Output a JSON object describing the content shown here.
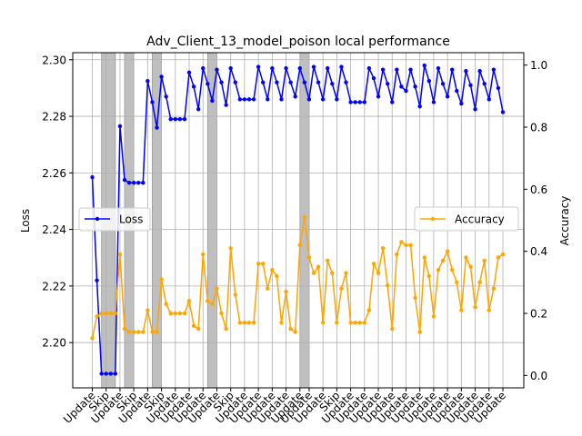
{
  "chart_data": {
    "type": "line",
    "title": "Adv_Client_13_model_poison local performance",
    "ylabel_left": "Loss",
    "ylabel_right": "Accuracy",
    "ylim_left": [
      2.184,
      2.3025
    ],
    "ylim_right": [
      -0.04,
      1.04
    ],
    "yticks_left": [
      "2.20",
      "2.22",
      "2.24",
      "2.26",
      "2.28",
      "2.30"
    ],
    "yticks_right": [
      "0.0",
      "0.2",
      "0.4",
      "0.6",
      "0.8",
      "1.0"
    ],
    "grid": true,
    "xtick_labels": [
      "Update",
      "Skip",
      "Update",
      "Skip",
      "Update",
      "Skip",
      "Update",
      "Update",
      "Update",
      "Update",
      "Skip",
      "Update",
      "Update",
      "Update",
      "Update",
      "Update",
      "Update",
      "Update",
      "Skip",
      "Update",
      "Update",
      "Update",
      "Update",
      "Update",
      "Update",
      "Update",
      "Update",
      "Update",
      "Update",
      "Update",
      "Update"
    ],
    "skip_regions": [
      [
        2,
        5
      ],
      [
        7,
        9
      ],
      [
        13,
        15
      ],
      [
        25,
        27
      ],
      [
        45,
        47
      ]
    ],
    "legend": {
      "loss_position": "center-left",
      "accuracy_position": "center-right"
    },
    "series": [
      {
        "name": "Loss",
        "color": "#0000ff",
        "axis": "left",
        "values": [
          2.2585,
          2.222,
          2.189,
          2.189,
          2.189,
          2.189,
          2.2765,
          2.2575,
          2.2565,
          2.2565,
          2.2565,
          2.2565,
          2.2925,
          2.285,
          2.276,
          2.294,
          2.287,
          2.279,
          2.279,
          2.279,
          2.279,
          2.2955,
          2.2905,
          2.2825,
          2.297,
          2.2915,
          2.2855,
          2.2965,
          2.292,
          2.284,
          2.297,
          2.292,
          2.286,
          2.286,
          2.286,
          2.286,
          2.2975,
          2.292,
          2.286,
          2.297,
          2.292,
          2.286,
          2.297,
          2.292,
          2.287,
          2.297,
          2.292,
          2.286,
          2.2975,
          2.292,
          2.286,
          2.297,
          2.2915,
          2.286,
          2.2975,
          2.292,
          2.285,
          2.285,
          2.285,
          2.285,
          2.297,
          2.2935,
          2.287,
          2.2965,
          2.2915,
          2.285,
          2.2965,
          2.2905,
          2.289,
          2.2965,
          2.2905,
          2.2835,
          2.298,
          2.2925,
          2.285,
          2.297,
          2.2915,
          2.287,
          2.2965,
          2.289,
          2.2845,
          2.296,
          2.291,
          2.2825,
          2.296,
          2.2915,
          2.286,
          2.2965,
          2.29,
          2.2815
        ]
      },
      {
        "name": "Accuracy",
        "color": "#ffa500",
        "axis": "right",
        "values": [
          0.12,
          0.19,
          0.2,
          0.2,
          0.2,
          0.2,
          0.39,
          0.15,
          0.14,
          0.14,
          0.14,
          0.14,
          0.21,
          0.14,
          0.14,
          0.31,
          0.23,
          0.2,
          0.2,
          0.2,
          0.2,
          0.24,
          0.16,
          0.15,
          0.39,
          0.24,
          0.23,
          0.28,
          0.2,
          0.15,
          0.41,
          0.26,
          0.17,
          0.17,
          0.17,
          0.17,
          0.36,
          0.36,
          0.28,
          0.34,
          0.32,
          0.17,
          0.27,
          0.15,
          0.14,
          0.42,
          0.51,
          0.38,
          0.33,
          0.35,
          0.17,
          0.37,
          0.33,
          0.17,
          0.28,
          0.33,
          0.17,
          0.17,
          0.17,
          0.17,
          0.21,
          0.36,
          0.33,
          0.41,
          0.29,
          0.15,
          0.39,
          0.43,
          0.42,
          0.42,
          0.25,
          0.14,
          0.38,
          0.32,
          0.19,
          0.34,
          0.37,
          0.4,
          0.34,
          0.3,
          0.21,
          0.38,
          0.35,
          0.22,
          0.3,
          0.37,
          0.21,
          0.28,
          0.38,
          0.39
        ]
      }
    ]
  }
}
